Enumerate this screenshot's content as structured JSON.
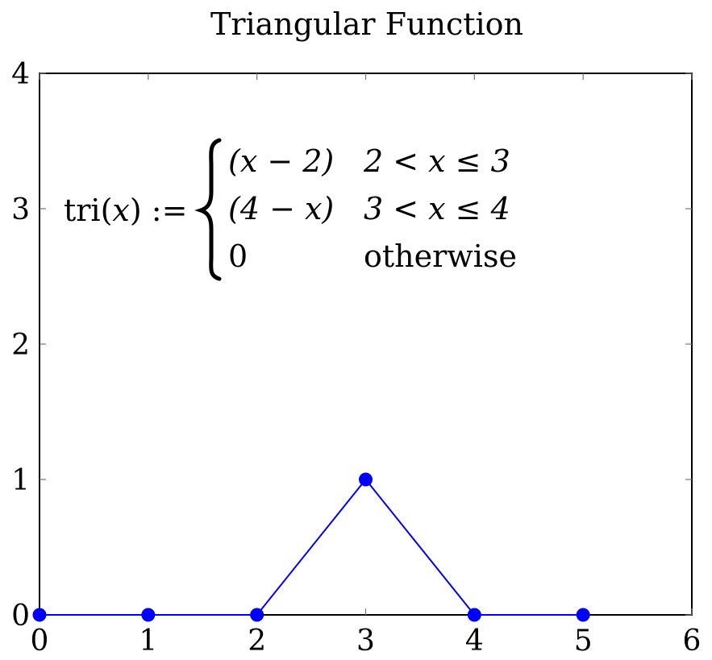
{
  "chart_data": {
    "type": "line",
    "title": "Triangular Function",
    "xlabel": "",
    "ylabel": "",
    "xlim": [
      0,
      6
    ],
    "ylim": [
      0,
      4
    ],
    "x_ticks": [
      "0",
      "1",
      "2",
      "3",
      "4",
      "5",
      "6"
    ],
    "y_ticks": [
      "0",
      "1",
      "2",
      "3",
      "4"
    ],
    "grid": false,
    "series": [
      {
        "x": [
          0,
          1,
          2,
          3,
          4,
          5
        ],
        "y": [
          0,
          0,
          0,
          1,
          0,
          0
        ],
        "color": "#0000ff",
        "marker": "circle"
      }
    ],
    "annotation": {
      "lhs_prefix": "tri(",
      "lhs_var": "x",
      "lhs_suffix": ") :=",
      "cases": [
        {
          "expr": "(x − 2)",
          "cond": "2 < x ≤ 3"
        },
        {
          "expr": "(4 − x)",
          "cond": "3 < x ≤ 4"
        },
        {
          "expr": "0",
          "cond": "otherwise"
        }
      ]
    }
  }
}
